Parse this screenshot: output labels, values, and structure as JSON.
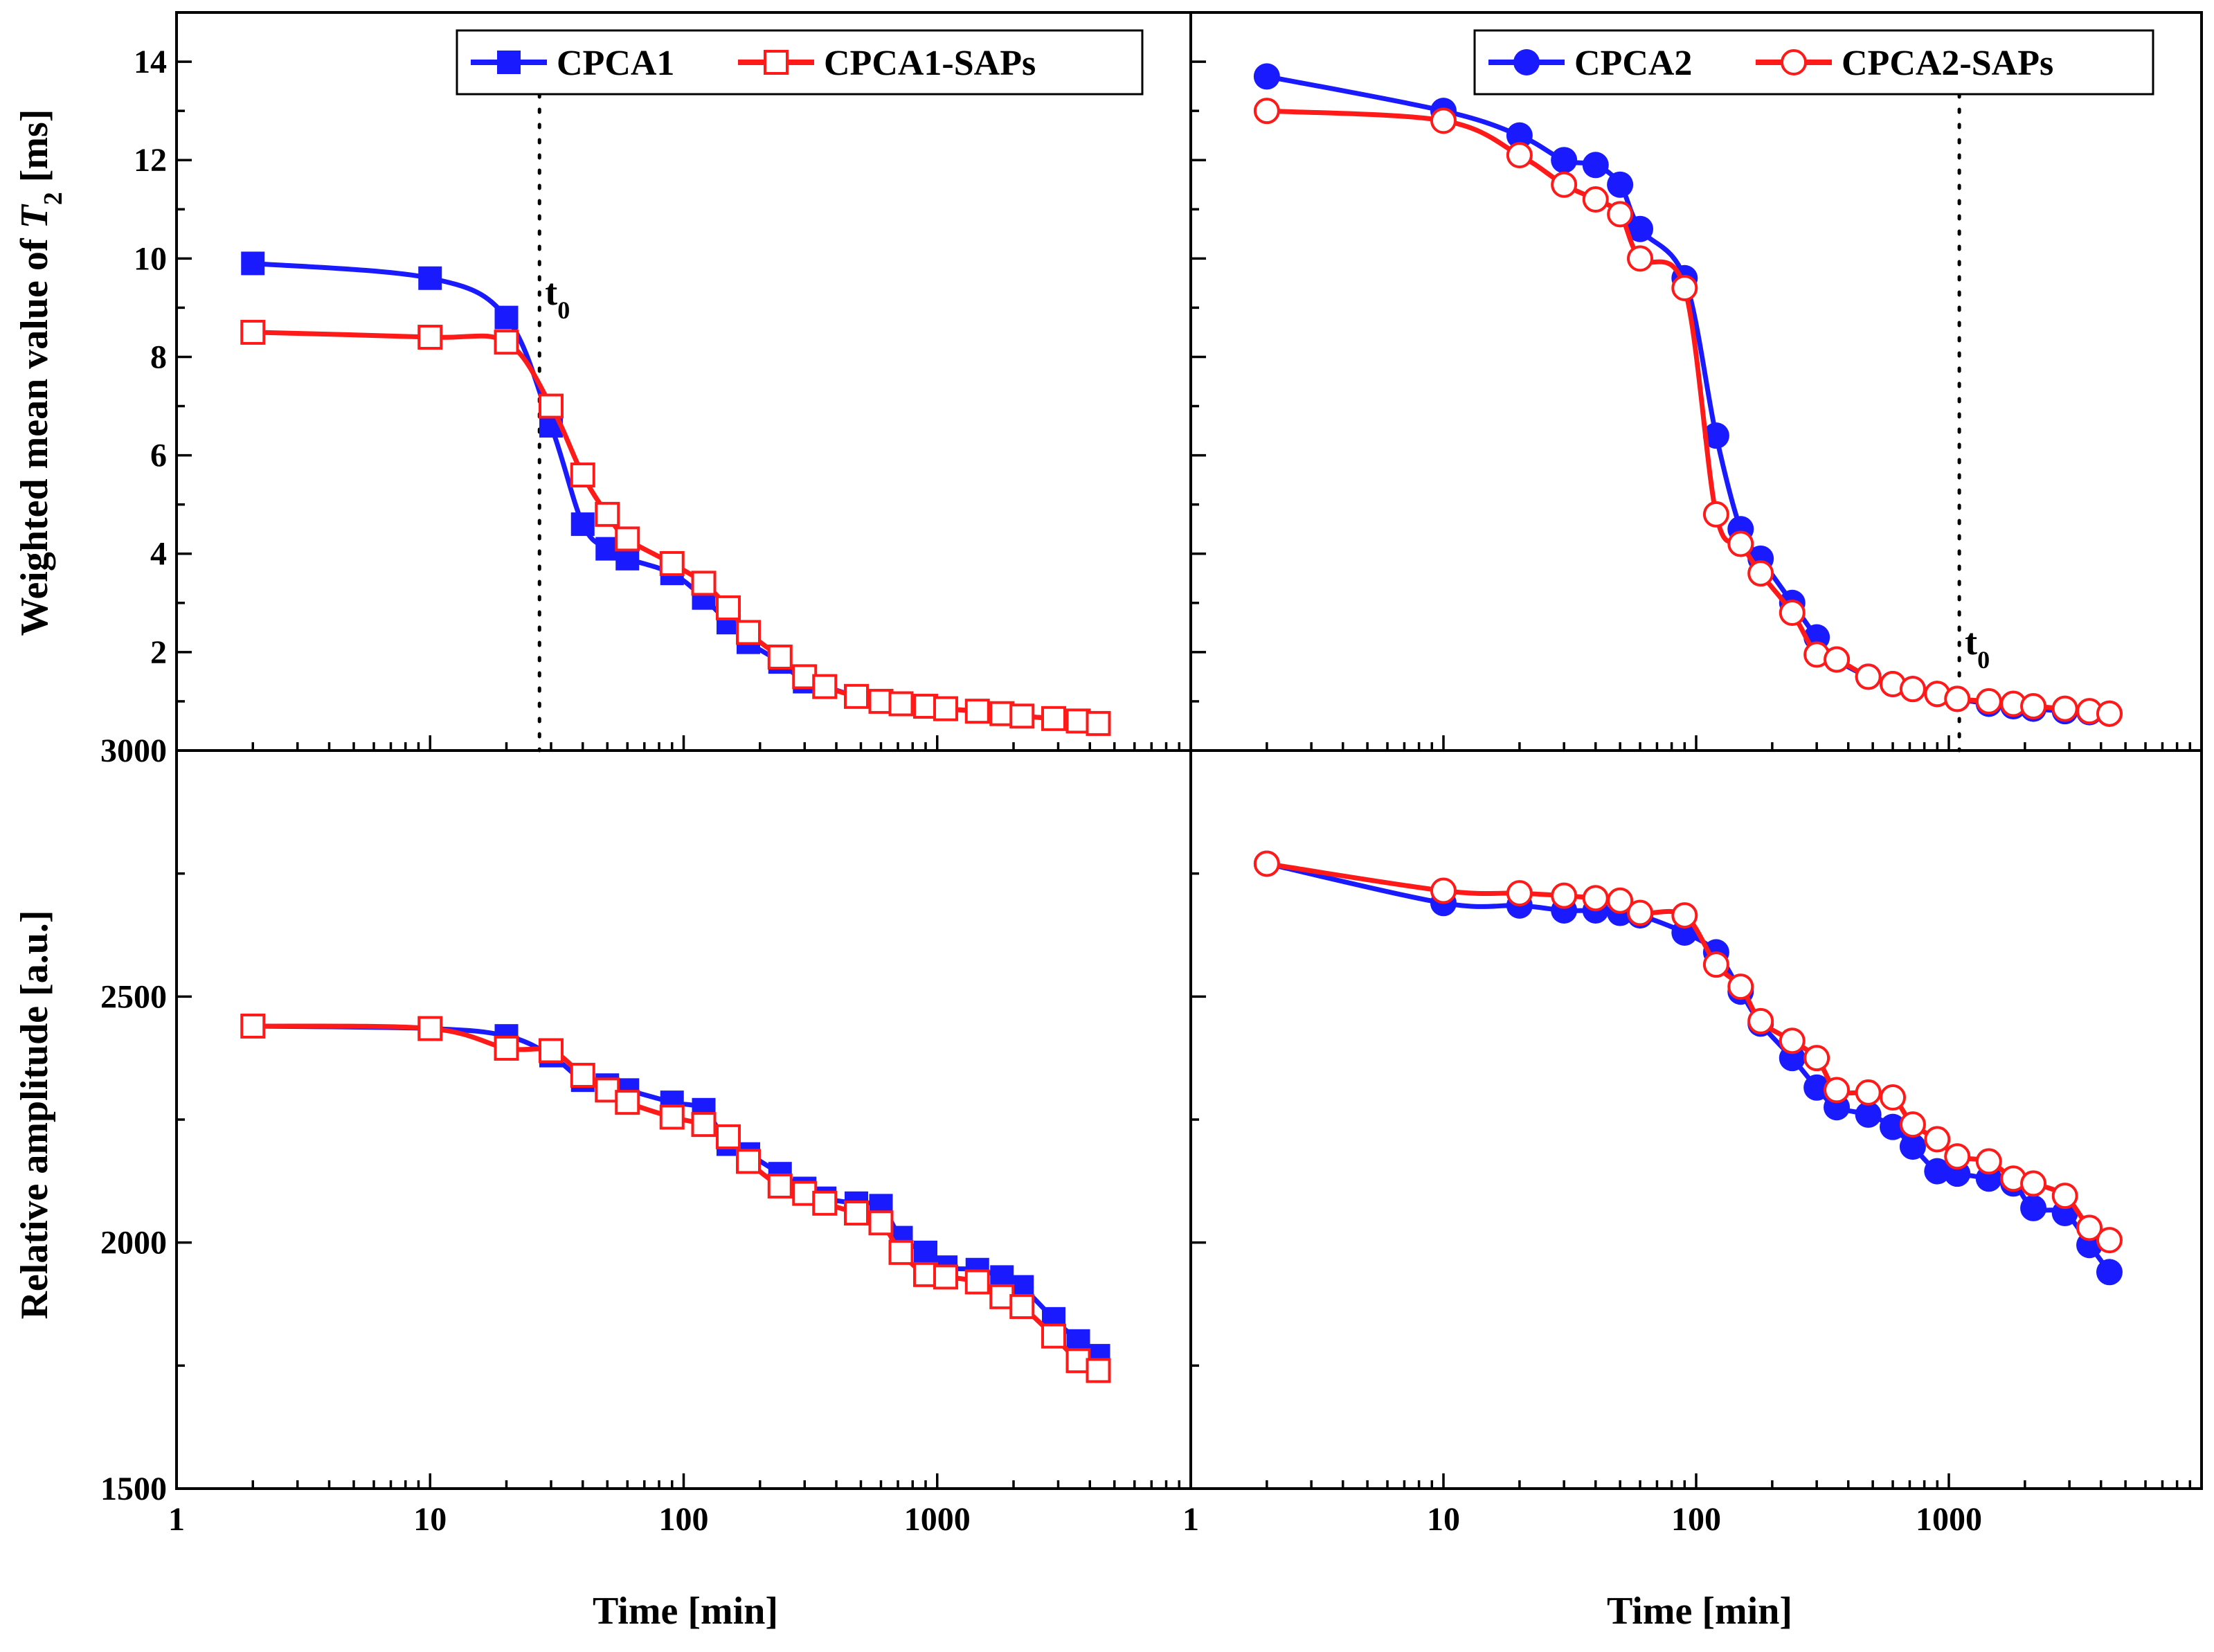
{
  "colors": {
    "blue": "#1a1aff",
    "red": "#ff1a1a"
  },
  "y_axis_titles": {
    "top_prefix": "Weighted mean value of ",
    "top_symbol": "T",
    "top_sub": "2",
    "top_suffix": " [ms]",
    "bottom": "Relative amplitude [a.u.]"
  },
  "x_axis_title": "Time [min]",
  "x_ticks": [
    "1",
    "10",
    "100",
    "1000"
  ],
  "top_y_ticks": [
    "2",
    "4",
    "6",
    "8",
    "10",
    "12",
    "14"
  ],
  "bottom_y_ticks": [
    "1500",
    "2000",
    "2500",
    "3000"
  ],
  "t0": {
    "base": "t",
    "sub": "0"
  },
  "chart_data": [
    {
      "type": "line",
      "panel": "top-left",
      "xscale": "log",
      "xlim": [
        1,
        10000
      ],
      "ylim": [
        0,
        15
      ],
      "ylabel": "Weighted mean value of T2 [ms]",
      "legend_position": "top-right",
      "t0_x": 27,
      "series": [
        {
          "name": "CPCA1",
          "color": "blue",
          "marker": "filled-square",
          "x": [
            2,
            10,
            20,
            30,
            40,
            50,
            60,
            90,
            120,
            150,
            180,
            240,
            300,
            360,
            480,
            600,
            720,
            900,
            1080,
            1440,
            1800,
            2160,
            2880,
            3600,
            4320
          ],
          "y": [
            9.9,
            9.6,
            8.8,
            6.6,
            4.6,
            4.1,
            3.9,
            3.6,
            3.1,
            2.6,
            2.2,
            1.8,
            1.4,
            1.3,
            1.1,
            1.0,
            0.95,
            0.9,
            0.85,
            0.8,
            0.75,
            0.7,
            0.65,
            0.6,
            0.55
          ]
        },
        {
          "name": "CPCA1-SAPs",
          "color": "red",
          "marker": "open-square",
          "x": [
            2,
            10,
            20,
            30,
            40,
            50,
            60,
            90,
            120,
            150,
            180,
            240,
            300,
            360,
            480,
            600,
            720,
            900,
            1080,
            1440,
            1800,
            2160,
            2880,
            3600,
            4320
          ],
          "y": [
            8.5,
            8.4,
            8.3,
            7.0,
            5.6,
            4.8,
            4.3,
            3.8,
            3.4,
            2.9,
            2.4,
            1.9,
            1.5,
            1.3,
            1.1,
            1.0,
            0.95,
            0.9,
            0.85,
            0.8,
            0.75,
            0.7,
            0.65,
            0.6,
            0.55
          ]
        }
      ]
    },
    {
      "type": "line",
      "panel": "top-right",
      "xscale": "log",
      "xlim": [
        1,
        10000
      ],
      "ylim": [
        0,
        15
      ],
      "legend_position": "top-right",
      "t0_x": 1100,
      "series": [
        {
          "name": "CPCA2",
          "color": "blue",
          "marker": "filled-circle",
          "x": [
            2,
            10,
            20,
            30,
            40,
            50,
            60,
            90,
            120,
            150,
            180,
            240,
            300,
            360,
            480,
            600,
            720,
            900,
            1080,
            1440,
            1800,
            2160,
            2880,
            3600,
            4320
          ],
          "y": [
            13.7,
            13.0,
            12.5,
            12.0,
            11.9,
            11.5,
            10.6,
            9.6,
            6.4,
            4.5,
            3.9,
            3.0,
            2.3,
            1.85,
            1.5,
            1.35,
            1.25,
            1.15,
            1.05,
            0.95,
            0.9,
            0.85,
            0.8,
            0.78,
            0.75
          ]
        },
        {
          "name": "CPCA2-SAPs",
          "color": "red",
          "marker": "open-circle",
          "x": [
            2,
            10,
            20,
            30,
            40,
            50,
            60,
            90,
            120,
            150,
            180,
            240,
            300,
            360,
            480,
            600,
            720,
            900,
            1080,
            1440,
            1800,
            2160,
            2880,
            3600,
            4320
          ],
          "y": [
            13.0,
            12.8,
            12.1,
            11.5,
            11.2,
            10.9,
            10.0,
            9.4,
            4.8,
            4.2,
            3.6,
            2.8,
            1.95,
            1.85,
            1.5,
            1.35,
            1.25,
            1.15,
            1.05,
            1.0,
            0.95,
            0.9,
            0.85,
            0.8,
            0.75
          ]
        }
      ]
    },
    {
      "type": "line",
      "panel": "bottom-left",
      "xscale": "log",
      "xlim": [
        1,
        10000
      ],
      "ylim": [
        1500,
        3000
      ],
      "xlabel": "Time [min]",
      "ylabel": "Relative amplitude [a.u.]",
      "series": [
        {
          "name": "CPCA1",
          "color": "blue",
          "marker": "filled-square",
          "x": [
            2,
            10,
            20,
            30,
            40,
            50,
            60,
            90,
            120,
            150,
            180,
            240,
            300,
            360,
            480,
            600,
            720,
            900,
            1080,
            1440,
            1800,
            2160,
            2880,
            3600,
            4320
          ],
          "y": [
            2440,
            2435,
            2420,
            2380,
            2330,
            2320,
            2310,
            2285,
            2270,
            2200,
            2180,
            2140,
            2110,
            2090,
            2080,
            2075,
            2010,
            1980,
            1950,
            1945,
            1930,
            1910,
            1845,
            1800,
            1770
          ]
        },
        {
          "name": "CPCA1-SAPs",
          "color": "red",
          "marker": "open-square",
          "x": [
            2,
            10,
            20,
            30,
            40,
            50,
            60,
            90,
            120,
            150,
            180,
            240,
            300,
            360,
            480,
            600,
            720,
            900,
            1080,
            1440,
            1800,
            2160,
            2880,
            3600,
            4320
          ],
          "y": [
            2440,
            2435,
            2395,
            2390,
            2340,
            2310,
            2285,
            2255,
            2240,
            2215,
            2165,
            2115,
            2100,
            2080,
            2060,
            2040,
            1980,
            1935,
            1930,
            1920,
            1890,
            1870,
            1810,
            1760,
            1740
          ]
        }
      ]
    },
    {
      "type": "line",
      "panel": "bottom-right",
      "xscale": "log",
      "xlim": [
        1,
        10000
      ],
      "ylim": [
        1500,
        3000
      ],
      "xlabel": "Time [min]",
      "series": [
        {
          "name": "CPCA2",
          "color": "blue",
          "marker": "filled-circle",
          "x": [
            2,
            10,
            20,
            30,
            40,
            50,
            60,
            90,
            120,
            150,
            180,
            240,
            300,
            360,
            480,
            600,
            720,
            900,
            1080,
            1440,
            1800,
            2160,
            2880,
            3600,
            4320
          ],
          "y": [
            2770,
            2690,
            2685,
            2675,
            2675,
            2670,
            2665,
            2630,
            2590,
            2510,
            2445,
            2375,
            2315,
            2275,
            2260,
            2235,
            2195,
            2145,
            2140,
            2130,
            2120,
            2070,
            2060,
            1995,
            1940
          ]
        },
        {
          "name": "CPCA2-SAPs",
          "color": "red",
          "marker": "open-circle",
          "x": [
            2,
            10,
            20,
            30,
            40,
            50,
            60,
            90,
            120,
            150,
            180,
            240,
            300,
            360,
            480,
            600,
            720,
            900,
            1080,
            1440,
            1800,
            2160,
            2880,
            3600,
            4320
          ],
          "y": [
            2770,
            2715,
            2710,
            2705,
            2700,
            2695,
            2670,
            2665,
            2565,
            2520,
            2450,
            2410,
            2375,
            2310,
            2305,
            2295,
            2240,
            2210,
            2175,
            2165,
            2130,
            2120,
            2095,
            2030,
            2005
          ]
        }
      ]
    }
  ]
}
